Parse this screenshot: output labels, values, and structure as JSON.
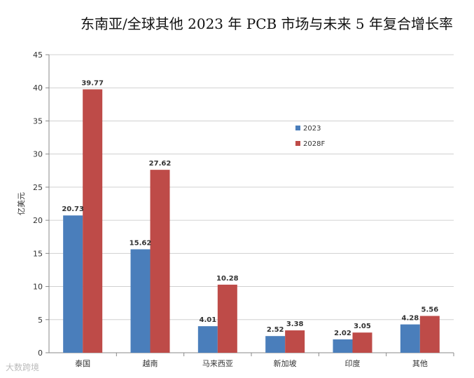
{
  "chart_data": {
    "type": "bar",
    "title": "东南亚/全球其他 2023 年 PCB 市场与未来 5 年复合增长率",
    "ylabel": "亿美元",
    "xlabel": "",
    "ylim": [
      0,
      45
    ],
    "yticks": [
      0,
      5,
      10,
      15,
      20,
      25,
      30,
      35,
      40,
      45
    ],
    "grid": true,
    "legend_position": "upper-right",
    "categories": [
      "泰国",
      "越南",
      "马来西亚",
      "新加坡",
      "印度",
      "其他"
    ],
    "series": [
      {
        "name": "2023",
        "color": "#4a7ebb",
        "values": [
          20.73,
          15.62,
          4.01,
          2.52,
          2.02,
          4.28
        ]
      },
      {
        "name": "2028F",
        "color": "#be4b48",
        "values": [
          39.77,
          27.62,
          10.28,
          3.38,
          3.05,
          5.56
        ]
      }
    ]
  },
  "watermark": "大数跨境"
}
